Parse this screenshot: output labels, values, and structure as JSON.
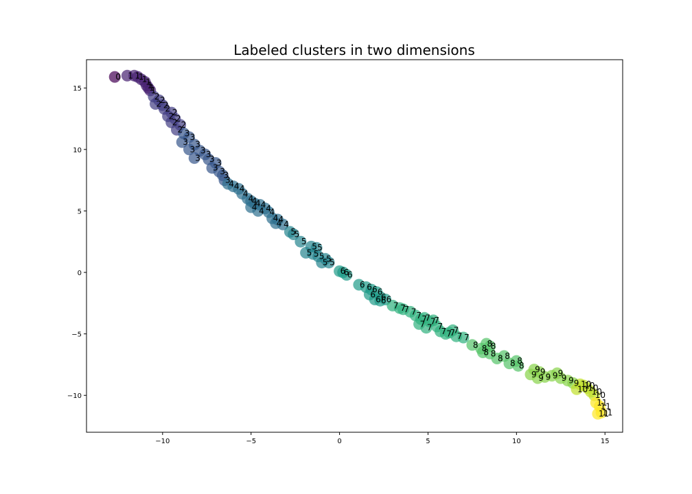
{
  "chart_data": {
    "type": "scatter",
    "title": "Labeled clusters in two dimensions",
    "xlabel": "",
    "ylabel": "",
    "xlim": [
      -14.3,
      16.0
    ],
    "ylim": [
      -13.0,
      17.3
    ],
    "xticks": [
      -10,
      -5,
      0,
      5,
      10,
      15
    ],
    "yticks": [
      -10,
      -5,
      0,
      5,
      10,
      15
    ],
    "xtick_labels": [
      "−10",
      "−5",
      "0",
      "5",
      "10",
      "15"
    ],
    "ytick_labels": [
      "−10",
      "−5",
      "0",
      "5",
      "10",
      "15"
    ],
    "colormap": "viridis",
    "marker_alpha": 0.7,
    "grid": false,
    "legend": "none",
    "points": [
      {
        "x": -12.7,
        "y": 15.9,
        "label": "0"
      },
      {
        "x": -12.0,
        "y": 16.0,
        "label": "1"
      },
      {
        "x": -11.6,
        "y": 16.0,
        "label": "1"
      },
      {
        "x": -11.4,
        "y": 15.9,
        "label": "1"
      },
      {
        "x": -11.2,
        "y": 15.7,
        "label": "1"
      },
      {
        "x": -11.0,
        "y": 15.5,
        "label": "1"
      },
      {
        "x": -10.9,
        "y": 15.2,
        "label": "1"
      },
      {
        "x": -10.8,
        "y": 15.0,
        "label": "1"
      },
      {
        "x": -10.7,
        "y": 14.8,
        "label": "1"
      },
      {
        "x": -10.5,
        "y": 14.3,
        "label": "2"
      },
      {
        "x": -10.2,
        "y": 14.0,
        "label": "2"
      },
      {
        "x": -10.4,
        "y": 13.7,
        "label": "2"
      },
      {
        "x": -10.0,
        "y": 13.6,
        "label": "2"
      },
      {
        "x": -9.9,
        "y": 13.3,
        "label": "2"
      },
      {
        "x": -9.5,
        "y": 13.0,
        "label": "2"
      },
      {
        "x": -9.7,
        "y": 12.7,
        "label": "2"
      },
      {
        "x": -9.3,
        "y": 12.5,
        "label": "2"
      },
      {
        "x": -9.5,
        "y": 12.2,
        "label": "2"
      },
      {
        "x": -9.0,
        "y": 12.0,
        "label": "2"
      },
      {
        "x": -9.2,
        "y": 11.6,
        "label": "2"
      },
      {
        "x": -8.8,
        "y": 11.3,
        "label": "3"
      },
      {
        "x": -8.5,
        "y": 11.0,
        "label": "3"
      },
      {
        "x": -8.9,
        "y": 10.6,
        "label": "3"
      },
      {
        "x": -8.2,
        "y": 10.4,
        "label": "3"
      },
      {
        "x": -8.5,
        "y": 10.0,
        "label": "3"
      },
      {
        "x": -7.9,
        "y": 9.9,
        "label": "3"
      },
      {
        "x": -7.6,
        "y": 9.6,
        "label": "3"
      },
      {
        "x": -8.2,
        "y": 9.3,
        "label": "3"
      },
      {
        "x": -7.4,
        "y": 9.2,
        "label": "3"
      },
      {
        "x": -7.0,
        "y": 8.9,
        "label": "3"
      },
      {
        "x": -7.2,
        "y": 8.5,
        "label": "3"
      },
      {
        "x": -6.8,
        "y": 8.2,
        "label": "3"
      },
      {
        "x": -6.6,
        "y": 7.9,
        "label": "3"
      },
      {
        "x": -6.5,
        "y": 7.5,
        "label": "3"
      },
      {
        "x": -6.3,
        "y": 7.2,
        "label": "4"
      },
      {
        "x": -6.0,
        "y": 7.0,
        "label": "4"
      },
      {
        "x": -5.7,
        "y": 6.8,
        "label": "4"
      },
      {
        "x": -5.5,
        "y": 6.4,
        "label": "4"
      },
      {
        "x": -5.2,
        "y": 6.0,
        "label": "4"
      },
      {
        "x": -5.0,
        "y": 5.8,
        "label": "4"
      },
      {
        "x": -4.8,
        "y": 5.6,
        "label": "4"
      },
      {
        "x": -5.0,
        "y": 5.3,
        "label": "4"
      },
      {
        "x": -4.5,
        "y": 5.5,
        "label": "4"
      },
      {
        "x": -4.2,
        "y": 5.2,
        "label": "4"
      },
      {
        "x": -4.6,
        "y": 5.0,
        "label": "4"
      },
      {
        "x": -4.0,
        "y": 4.9,
        "label": "4"
      },
      {
        "x": -3.8,
        "y": 4.4,
        "label": "4"
      },
      {
        "x": -3.5,
        "y": 4.3,
        "label": "4"
      },
      {
        "x": -3.6,
        "y": 4.0,
        "label": "4"
      },
      {
        "x": -3.2,
        "y": 3.9,
        "label": "4"
      },
      {
        "x": -2.8,
        "y": 3.3,
        "label": "5"
      },
      {
        "x": -2.6,
        "y": 3.1,
        "label": "5"
      },
      {
        "x": -2.2,
        "y": 2.5,
        "label": "5"
      },
      {
        "x": -1.6,
        "y": 2.1,
        "label": "5"
      },
      {
        "x": -1.3,
        "y": 2.0,
        "label": "5"
      },
      {
        "x": -1.9,
        "y": 1.6,
        "label": "5"
      },
      {
        "x": -1.5,
        "y": 1.5,
        "label": "5"
      },
      {
        "x": -1.2,
        "y": 1.3,
        "label": "5"
      },
      {
        "x": -0.8,
        "y": 1.1,
        "label": "5"
      },
      {
        "x": -1.0,
        "y": 0.8,
        "label": "5"
      },
      {
        "x": -0.6,
        "y": 0.8,
        "label": "5"
      },
      {
        "x": 0.0,
        "y": 0.1,
        "label": "6"
      },
      {
        "x": 0.2,
        "y": 0.0,
        "label": "6"
      },
      {
        "x": 0.4,
        "y": -0.2,
        "label": "6"
      },
      {
        "x": 1.1,
        "y": -1.0,
        "label": "6"
      },
      {
        "x": 1.5,
        "y": -1.2,
        "label": "6"
      },
      {
        "x": 1.8,
        "y": -1.4,
        "label": "6"
      },
      {
        "x": 2.1,
        "y": -1.6,
        "label": "6"
      },
      {
        "x": 1.7,
        "y": -1.8,
        "label": "6"
      },
      {
        "x": 2.3,
        "y": -2.0,
        "label": "6"
      },
      {
        "x": 2.0,
        "y": -2.2,
        "label": "6"
      },
      {
        "x": 2.6,
        "y": -2.2,
        "label": "6"
      },
      {
        "x": 2.3,
        "y": -2.3,
        "label": "6"
      },
      {
        "x": 3.0,
        "y": -2.7,
        "label": "7"
      },
      {
        "x": 3.4,
        "y": -2.9,
        "label": "7"
      },
      {
        "x": 3.6,
        "y": -3.0,
        "label": "7"
      },
      {
        "x": 4.0,
        "y": -3.2,
        "label": "7"
      },
      {
        "x": 4.3,
        "y": -3.5,
        "label": "7"
      },
      {
        "x": 4.6,
        "y": -3.8,
        "label": "7"
      },
      {
        "x": 4.8,
        "y": -3.7,
        "label": "7"
      },
      {
        "x": 4.5,
        "y": -4.2,
        "label": "7"
      },
      {
        "x": 5.1,
        "y": -4.0,
        "label": "7"
      },
      {
        "x": 5.3,
        "y": -3.9,
        "label": "7"
      },
      {
        "x": 4.9,
        "y": -4.5,
        "label": "7"
      },
      {
        "x": 5.5,
        "y": -4.4,
        "label": "7"
      },
      {
        "x": 5.7,
        "y": -4.8,
        "label": "7"
      },
      {
        "x": 6.0,
        "y": -5.0,
        "label": "7"
      },
      {
        "x": 6.2,
        "y": -4.9,
        "label": "7"
      },
      {
        "x": 6.4,
        "y": -4.7,
        "label": "7"
      },
      {
        "x": 6.6,
        "y": -5.2,
        "label": "7"
      },
      {
        "x": 7.0,
        "y": -5.3,
        "label": "7"
      },
      {
        "x": 7.5,
        "y": -5.9,
        "label": "8"
      },
      {
        "x": 8.0,
        "y": -6.2,
        "label": "8"
      },
      {
        "x": 8.3,
        "y": -5.8,
        "label": "8"
      },
      {
        "x": 8.5,
        "y": -6.0,
        "label": "8"
      },
      {
        "x": 8.1,
        "y": -6.5,
        "label": "8"
      },
      {
        "x": 8.5,
        "y": -6.6,
        "label": "8"
      },
      {
        "x": 8.9,
        "y": -7.0,
        "label": "8"
      },
      {
        "x": 9.3,
        "y": -6.8,
        "label": "8"
      },
      {
        "x": 9.6,
        "y": -7.4,
        "label": "8"
      },
      {
        "x": 10.0,
        "y": -7.2,
        "label": "8"
      },
      {
        "x": 10.1,
        "y": -7.6,
        "label": "8"
      },
      {
        "x": 10.8,
        "y": -8.3,
        "label": "9"
      },
      {
        "x": 11.0,
        "y": -7.9,
        "label": "9"
      },
      {
        "x": 11.3,
        "y": -8.1,
        "label": "9"
      },
      {
        "x": 11.2,
        "y": -8.6,
        "label": "9"
      },
      {
        "x": 11.6,
        "y": -8.5,
        "label": "9"
      },
      {
        "x": 12.0,
        "y": -8.4,
        "label": "9"
      },
      {
        "x": 12.3,
        "y": -8.2,
        "label": "9"
      },
      {
        "x": 12.5,
        "y": -8.6,
        "label": "9"
      },
      {
        "x": 12.9,
        "y": -8.8,
        "label": "9"
      },
      {
        "x": 13.2,
        "y": -9.0,
        "label": "9"
      },
      {
        "x": 13.6,
        "y": -9.1,
        "label": "10"
      },
      {
        "x": 13.8,
        "y": -9.2,
        "label": "10"
      },
      {
        "x": 13.4,
        "y": -9.5,
        "label": "10"
      },
      {
        "x": 14.0,
        "y": -9.4,
        "label": "10"
      },
      {
        "x": 14.2,
        "y": -9.7,
        "label": "10"
      },
      {
        "x": 14.4,
        "y": -10.0,
        "label": "10"
      },
      {
        "x": 14.5,
        "y": -10.6,
        "label": "11"
      },
      {
        "x": 14.7,
        "y": -10.9,
        "label": "11"
      },
      {
        "x": 14.6,
        "y": -11.5,
        "label": "11"
      },
      {
        "x": 14.8,
        "y": -11.4,
        "label": "11"
      }
    ]
  }
}
